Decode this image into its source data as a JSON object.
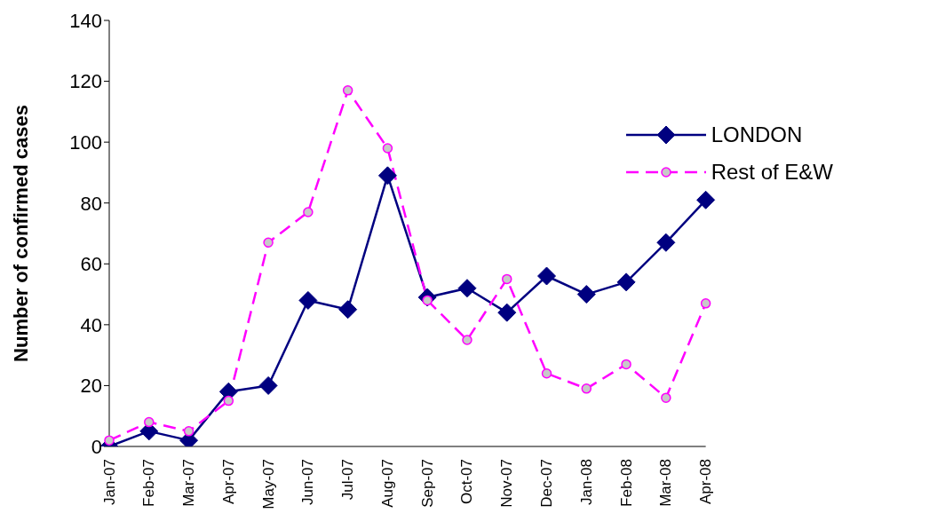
{
  "chart_data": {
    "type": "line",
    "ylabel": "Number of confirmed cases",
    "categories": [
      "Jan-07",
      "Feb-07",
      "Mar-07",
      "Apr-07",
      "May-07",
      "Jun-07",
      "Jul-07",
      "Aug-07",
      "Sep-07",
      "Oct-07",
      "Nov-07",
      "Dec-07",
      "Jan-08",
      "Feb-08",
      "Mar-08",
      "Apr-08"
    ],
    "series": [
      {
        "name": "LONDON",
        "color": "#000080",
        "marker": "diamond",
        "line_style": "solid",
        "values": [
          0,
          5,
          2,
          18,
          20,
          48,
          45,
          89,
          49,
          52,
          44,
          56,
          50,
          54,
          67,
          81
        ]
      },
      {
        "name": "Rest of E&W",
        "color": "#ff00ff",
        "marker": "circle",
        "line_style": "dashed",
        "values": [
          2,
          8,
          5,
          15,
          67,
          77,
          117,
          98,
          48,
          35,
          55,
          24,
          19,
          27,
          16,
          47
        ]
      }
    ],
    "ylim": [
      0,
      140
    ],
    "yticks": [
      0,
      20,
      40,
      60,
      80,
      100,
      120,
      140
    ],
    "grid": false,
    "legend": "top right"
  }
}
